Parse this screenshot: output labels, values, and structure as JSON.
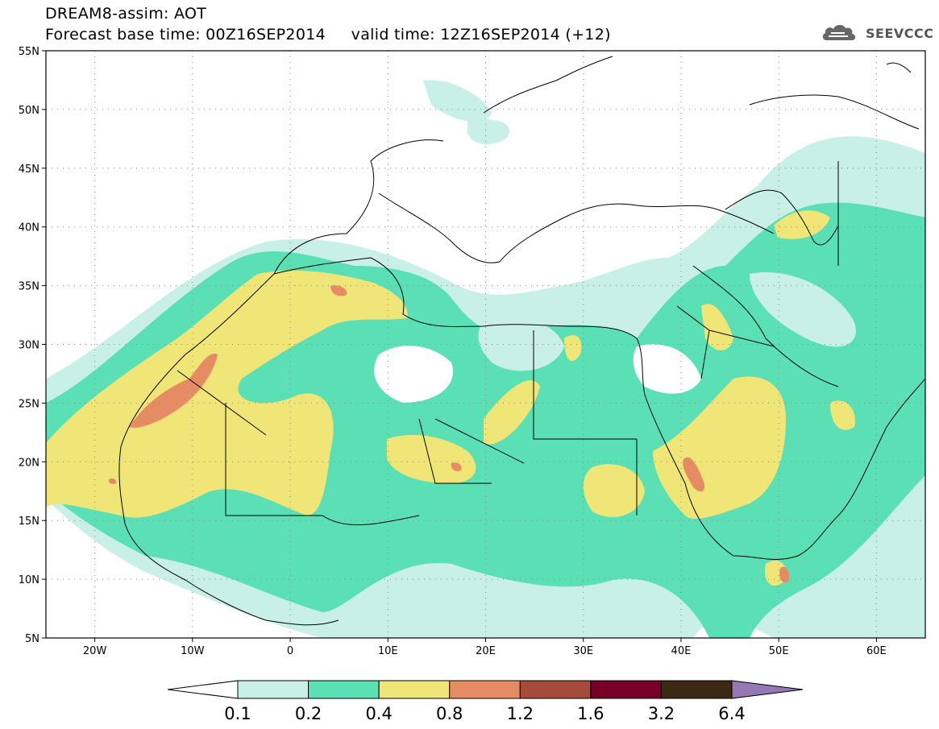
{
  "header": {
    "title_line_1": "DREAM8-assim: AOT",
    "title_line_2": "Forecast base time: 00Z16SEP2014     valid time: 12Z16SEP2014 (+12)",
    "logo_text": "SEEVCCC",
    "logo_icon": "cloud-icon"
  },
  "map": {
    "projection": "lat-lon",
    "lon_range": [
      -25,
      65
    ],
    "lat_range": [
      5,
      55
    ],
    "lat_ticks": [
      {
        "value": 55,
        "label": "55N"
      },
      {
        "value": 50,
        "label": "50N"
      },
      {
        "value": 45,
        "label": "45N"
      },
      {
        "value": 40,
        "label": "40N"
      },
      {
        "value": 35,
        "label": "35N"
      },
      {
        "value": 30,
        "label": "30N"
      },
      {
        "value": 25,
        "label": "25N"
      },
      {
        "value": 20,
        "label": "20N"
      },
      {
        "value": 15,
        "label": "15N"
      },
      {
        "value": 10,
        "label": "10N"
      },
      {
        "value": 5,
        "label": "5N"
      }
    ],
    "lon_ticks": [
      {
        "value": -20,
        "label": "20W"
      },
      {
        "value": -10,
        "label": "10W"
      },
      {
        "value": 0,
        "label": "0"
      },
      {
        "value": 10,
        "label": "10E"
      },
      {
        "value": 20,
        "label": "20E"
      },
      {
        "value": 30,
        "label": "30E"
      },
      {
        "value": 40,
        "label": "40E"
      },
      {
        "value": 50,
        "label": "50E"
      },
      {
        "value": 60,
        "label": "60E"
      }
    ],
    "gridlines": "dotted",
    "field": "Aerosol optical thickness (AOT)"
  },
  "colorbar": {
    "boundaries": [
      "0.1",
      "0.2",
      "0.4",
      "0.8",
      "1.2",
      "1.6",
      "3.2",
      "6.4"
    ],
    "colors": [
      "#c8f0e6",
      "#5ae0b4",
      "#f0e678",
      "#e68c64",
      "#a54b3c",
      "#780028",
      "#3c2814",
      "#9678b4"
    ],
    "extend": "both"
  },
  "colors": {
    "aot_01_02": "#c8f0e6",
    "aot_02_04": "#5ae0b4",
    "aot_04_08": "#f0e678",
    "aot_08_12": "#e68c64",
    "aot_12_16": "#a54b3c"
  }
}
